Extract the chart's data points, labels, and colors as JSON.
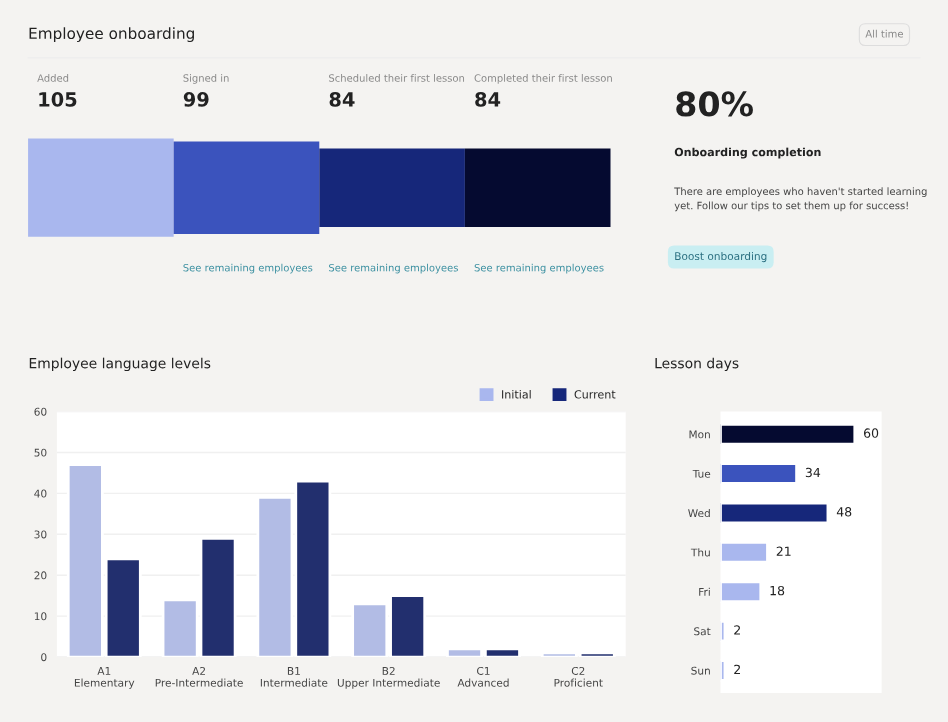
{
  "chart_data": [
    {
      "type": "other",
      "title": "Employee onboarding",
      "categories": [
        "Added",
        "Signed in",
        "Scheduled their first lesson",
        "Completed their first lesson"
      ],
      "values": [
        105,
        99,
        84,
        84
      ],
      "colors": [
        "#a9b7ee",
        "#3b53bd",
        "#16277a",
        "#050a30"
      ],
      "data_labels": true,
      "annotations": [
        "All time",
        "80%",
        "Onboarding completion",
        "There are employees who haven't started learning yet. Follow our tips to set them up for success!",
        "Boost onboarding",
        {
          "text": "See remaining employees",
          "x": "Signed in"
        },
        {
          "text": "See remaining employees",
          "x": "Scheduled their first lesson"
        },
        {
          "text": "See remaining employees",
          "x": "Completed their first lesson"
        }
      ]
    },
    {
      "type": "bar",
      "title": "Employee language levels",
      "categories": [
        "A1\nElementary",
        "A2\nPre-Intermediate",
        "B1\nIntermediate",
        "B2\nUpper Intermediate",
        "C1\nAdvanced",
        "C2\nProficient"
      ],
      "series": [
        {
          "name": "Initial",
          "color": "#a9b7ee",
          "values": [
            47,
            14,
            39,
            13,
            2,
            1
          ]
        },
        {
          "name": "Current",
          "color": "#16277a",
          "values": [
            24,
            29,
            43,
            15,
            2,
            1
          ]
        }
      ],
      "ylim": [
        0,
        60
      ],
      "yticks": [
        0,
        10,
        20,
        30,
        40,
        50,
        60
      ],
      "grid": "y",
      "legend": "top right"
    },
    {
      "type": "bar",
      "title": "Lesson days",
      "orientation": "horizontal",
      "categories": [
        "Mon",
        "Tue",
        "Wed",
        "Thu",
        "Fri",
        "Sat",
        "Sun"
      ],
      "values": [
        60,
        34,
        48,
        21,
        18,
        2,
        2
      ],
      "colors": [
        "#050a30",
        "#3b53bd",
        "#16277a",
        "#a9b7ee",
        "#a9b7ee",
        "#a9b7ee",
        "#a9b7ee"
      ],
      "data_labels": true,
      "tick_labels": "y"
    }
  ]
}
